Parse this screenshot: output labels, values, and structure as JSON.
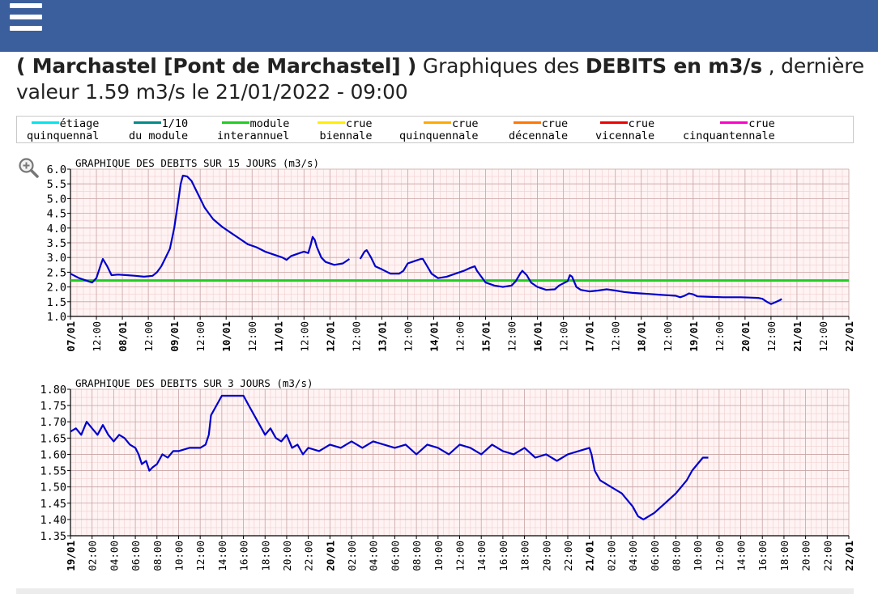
{
  "header": {
    "menu_icon": "hamburger-menu-icon",
    "bg_color": "#3a5f9c"
  },
  "title": {
    "station": "( Marchastel [Pont de Marchastel] )",
    "prefix": " Graphiques des ",
    "measure": "DEBITS en m3/s",
    "suffix": " , dernière valeur 1.59 m3/s le 21/01/2022 - 09:00"
  },
  "legend": [
    {
      "line1": "étiage",
      "line2": "quinquennal",
      "color": "#00e5ee"
    },
    {
      "line1": "1/10",
      "line2": "du module",
      "color": "#008b8b"
    },
    {
      "line1": "module",
      "line2": "interannuel",
      "color": "#22cc22"
    },
    {
      "line1": "crue",
      "line2": "biennale",
      "color": "#ffee00"
    },
    {
      "line1": "crue",
      "line2": "quinquennale",
      "color": "#ffaa00"
    },
    {
      "line1": "crue",
      "line2": "décennale",
      "color": "#ff7700"
    },
    {
      "line1": "crue",
      "line2": "vicennale",
      "color": "#ee0000"
    },
    {
      "line1": "crue",
      "line2": "cinquantennale",
      "color": "#ff00cc"
    }
  ],
  "zoom_icon": "zoom-in-icon",
  "chart_data": [
    {
      "type": "line",
      "title": "GRAPHIQUE DES DEBITS SUR 15 JOURS (m3/s)",
      "ylim": [
        1.0,
        6.0
      ],
      "y_ticks": [
        "1.0",
        "1.5",
        "2.0",
        "2.5",
        "3.0",
        "3.5",
        "4.0",
        "4.5",
        "5.0",
        "5.5",
        "6.0"
      ],
      "x_range_hours": [
        0,
        360
      ],
      "x_ticks": [
        "07/01",
        "12:00",
        "08/01",
        "12:00",
        "09/01",
        "12:00",
        "10/01",
        "12:00",
        "11/01",
        "12:00",
        "12/01",
        "12:00",
        "13/01",
        "12:00",
        "14/01",
        "12:00",
        "15/01",
        "12:00",
        "16/01",
        "12:00",
        "17/01",
        "12:00",
        "18/01",
        "12:00",
        "19/01",
        "12:00",
        "20/01",
        "12:00",
        "21/01",
        "12:00",
        "22/01"
      ],
      "grid": true,
      "reference_lines": [
        {
          "name": "module interannuel",
          "value": 2.22,
          "color": "#22cc22"
        }
      ],
      "series": [
        {
          "color": "#0000cc",
          "segments": [
            [
              [
                0,
                2.45
              ],
              [
                4,
                2.3
              ],
              [
                8,
                2.2
              ],
              [
                10,
                2.15
              ],
              [
                12,
                2.3
              ],
              [
                14,
                2.75
              ],
              [
                15,
                2.95
              ],
              [
                17,
                2.7
              ],
              [
                19,
                2.4
              ],
              [
                22,
                2.42
              ],
              [
                26,
                2.4
              ],
              [
                30,
                2.38
              ],
              [
                34,
                2.35
              ],
              [
                38,
                2.38
              ],
              [
                40,
                2.5
              ],
              [
                42,
                2.7
              ],
              [
                44,
                3.0
              ],
              [
                46,
                3.3
              ],
              [
                48,
                4.0
              ],
              [
                49,
                4.5
              ],
              [
                50,
                5.0
              ],
              [
                51,
                5.5
              ],
              [
                52,
                5.78
              ],
              [
                54,
                5.75
              ],
              [
                56,
                5.6
              ],
              [
                58,
                5.3
              ],
              [
                60,
                5.0
              ],
              [
                62,
                4.7
              ],
              [
                64,
                4.5
              ],
              [
                66,
                4.3
              ],
              [
                70,
                4.05
              ],
              [
                74,
                3.85
              ],
              [
                78,
                3.65
              ],
              [
                82,
                3.45
              ],
              [
                86,
                3.35
              ],
              [
                90,
                3.2
              ],
              [
                94,
                3.1
              ],
              [
                98,
                3.0
              ],
              [
                100,
                2.92
              ],
              [
                102,
                3.05
              ],
              [
                106,
                3.15
              ],
              [
                108,
                3.2
              ],
              [
                110,
                3.15
              ],
              [
                111,
                3.4
              ],
              [
                112,
                3.7
              ],
              [
                113,
                3.6
              ],
              [
                114,
                3.35
              ],
              [
                116,
                3.0
              ],
              [
                118,
                2.85
              ],
              [
                122,
                2.75
              ],
              [
                126,
                2.8
              ],
              [
                129,
                2.95
              ]
            ],
            [
              [
                134,
                2.95
              ],
              [
                136,
                3.2
              ],
              [
                137,
                3.25
              ],
              [
                139,
                3.0
              ],
              [
                141,
                2.7
              ],
              [
                144,
                2.6
              ],
              [
                148,
                2.45
              ],
              [
                152,
                2.45
              ],
              [
                154,
                2.55
              ],
              [
                156,
                2.8
              ],
              [
                160,
                2.9
              ],
              [
                162,
                2.95
              ],
              [
                163,
                2.95
              ],
              [
                165,
                2.7
              ],
              [
                167,
                2.45
              ],
              [
                170,
                2.3
              ],
              [
                174,
                2.35
              ],
              [
                178,
                2.45
              ],
              [
                182,
                2.55
              ],
              [
                185,
                2.65
              ],
              [
                187,
                2.7
              ],
              [
                188,
                2.55
              ],
              [
                190,
                2.35
              ],
              [
                192,
                2.15
              ],
              [
                196,
                2.05
              ],
              [
                200,
                2.0
              ],
              [
                204,
                2.05
              ],
              [
                206,
                2.2
              ],
              [
                208,
                2.45
              ],
              [
                209,
                2.55
              ],
              [
                211,
                2.4
              ],
              [
                213,
                2.15
              ],
              [
                216,
                2.0
              ],
              [
                220,
                1.9
              ],
              [
                224,
                1.92
              ],
              [
                226,
                2.05
              ],
              [
                230,
                2.2
              ],
              [
                231,
                2.4
              ],
              [
                232,
                2.35
              ],
              [
                234,
                2.0
              ],
              [
                236,
                1.9
              ],
              [
                240,
                1.85
              ],
              [
                244,
                1.88
              ],
              [
                248,
                1.92
              ],
              [
                252,
                1.88
              ],
              [
                256,
                1.83
              ],
              [
                260,
                1.8
              ],
              [
                264,
                1.78
              ],
              [
                268,
                1.76
              ],
              [
                272,
                1.74
              ],
              [
                276,
                1.72
              ],
              [
                280,
                1.7
              ],
              [
                282,
                1.65
              ],
              [
                284,
                1.7
              ],
              [
                286,
                1.78
              ],
              [
                288,
                1.75
              ],
              [
                290,
                1.68
              ],
              [
                294,
                1.67
              ],
              [
                298,
                1.66
              ],
              [
                302,
                1.65
              ],
              [
                306,
                1.65
              ],
              [
                310,
                1.65
              ],
              [
                314,
                1.64
              ],
              [
                318,
                1.63
              ],
              [
                320,
                1.6
              ],
              [
                322,
                1.5
              ],
              [
                324,
                1.42
              ],
              [
                326,
                1.48
              ],
              [
                328,
                1.55
              ],
              [
                329,
                1.59
              ]
            ]
          ]
        }
      ]
    },
    {
      "type": "line",
      "title": "GRAPHIQUE DES DEBITS SUR 3 JOURS (m3/s)",
      "ylim": [
        1.35,
        1.8
      ],
      "y_ticks": [
        "1.35",
        "1.40",
        "1.45",
        "1.50",
        "1.55",
        "1.60",
        "1.65",
        "1.70",
        "1.75",
        "1.80"
      ],
      "x_range_hours": [
        0,
        72
      ],
      "x_ticks": [
        "19/01",
        "02:00",
        "04:00",
        "06:00",
        "08:00",
        "10:00",
        "12:00",
        "14:00",
        "16:00",
        "18:00",
        "20:00",
        "22:00",
        "20/01",
        "02:00",
        "04:00",
        "06:00",
        "08:00",
        "10:00",
        "12:00",
        "14:00",
        "16:00",
        "18:00",
        "20:00",
        "22:00",
        "21/01",
        "02:00",
        "04:00",
        "06:00",
        "08:00",
        "10:00",
        "12:00",
        "14:00",
        "16:00",
        "18:00",
        "20:00",
        "22:00",
        "22/01"
      ],
      "grid": true,
      "series": [
        {
          "color": "#0000cc",
          "segments": [
            [
              [
                0,
                1.67
              ],
              [
                0.5,
                1.68
              ],
              [
                1,
                1.66
              ],
              [
                1.5,
                1.7
              ],
              [
                2,
                1.68
              ],
              [
                2.5,
                1.66
              ],
              [
                3,
                1.69
              ],
              [
                3.5,
                1.66
              ],
              [
                4,
                1.64
              ],
              [
                4.5,
                1.66
              ],
              [
                5,
                1.65
              ],
              [
                5.5,
                1.63
              ],
              [
                6,
                1.62
              ],
              [
                6.3,
                1.6
              ],
              [
                6.6,
                1.57
              ],
              [
                7,
                1.58
              ],
              [
                7.3,
                1.55
              ],
              [
                7.6,
                1.56
              ],
              [
                8,
                1.57
              ],
              [
                8.5,
                1.6
              ],
              [
                9,
                1.59
              ],
              [
                9.5,
                1.61
              ],
              [
                10,
                1.61
              ],
              [
                11,
                1.62
              ],
              [
                12,
                1.62
              ],
              [
                12.5,
                1.63
              ],
              [
                12.8,
                1.66
              ],
              [
                13,
                1.72
              ],
              [
                13.5,
                1.75
              ],
              [
                14,
                1.78
              ],
              [
                15,
                1.78
              ],
              [
                16,
                1.78
              ],
              [
                16.5,
                1.75
              ],
              [
                17,
                1.72
              ],
              [
                17.5,
                1.69
              ],
              [
                18,
                1.66
              ],
              [
                18.5,
                1.68
              ],
              [
                19,
                1.65
              ],
              [
                19.5,
                1.64
              ],
              [
                20,
                1.66
              ],
              [
                20.5,
                1.62
              ],
              [
                21,
                1.63
              ],
              [
                21.5,
                1.6
              ],
              [
                22,
                1.62
              ],
              [
                23,
                1.61
              ],
              [
                24,
                1.63
              ],
              [
                25,
                1.62
              ],
              [
                26,
                1.64
              ],
              [
                27,
                1.62
              ],
              [
                28,
                1.64
              ],
              [
                29,
                1.63
              ],
              [
                30,
                1.62
              ],
              [
                31,
                1.63
              ],
              [
                32,
                1.6
              ],
              [
                33,
                1.63
              ],
              [
                34,
                1.62
              ],
              [
                35,
                1.6
              ],
              [
                36,
                1.63
              ],
              [
                37,
                1.62
              ],
              [
                38,
                1.6
              ],
              [
                39,
                1.63
              ],
              [
                40,
                1.61
              ],
              [
                41,
                1.6
              ],
              [
                42,
                1.62
              ],
              [
                43,
                1.59
              ],
              [
                44,
                1.6
              ],
              [
                45,
                1.58
              ],
              [
                46,
                1.6
              ],
              [
                47,
                1.61
              ],
              [
                48,
                1.62
              ],
              [
                48.2,
                1.6
              ],
              [
                48.5,
                1.55
              ],
              [
                49,
                1.52
              ],
              [
                50,
                1.5
              ],
              [
                51,
                1.48
              ],
              [
                52,
                1.44
              ],
              [
                52.5,
                1.41
              ],
              [
                53,
                1.4
              ],
              [
                54,
                1.42
              ],
              [
                55,
                1.45
              ],
              [
                56,
                1.48
              ],
              [
                56.5,
                1.5
              ],
              [
                57,
                1.52
              ],
              [
                57.5,
                1.55
              ],
              [
                58,
                1.57
              ],
              [
                58.5,
                1.59
              ],
              [
                59,
                1.59
              ]
            ]
          ]
        }
      ]
    }
  ]
}
